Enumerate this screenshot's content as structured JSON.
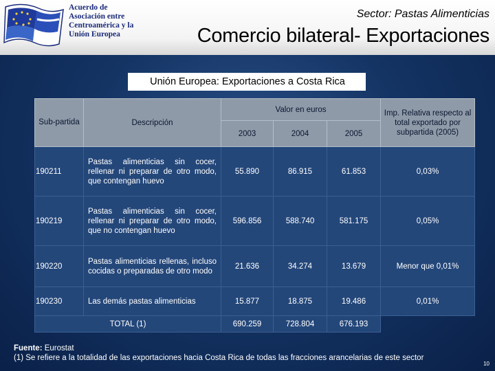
{
  "logo": {
    "lines": [
      "Acuerdo de",
      "Asociación entre",
      "Centroamérica y la",
      "Unión Europea"
    ]
  },
  "header": {
    "sector": "Sector: Pastas Alimenticias",
    "title": "Comercio bilateral- Exportaciones"
  },
  "subtitle": "Unión Europea: Exportaciones a Costa Rica",
  "table": {
    "headers": {
      "subpartida": "Sub-partida",
      "descripcion": "Descripción",
      "valor": "Valor en euros",
      "years": [
        "2003",
        "2004",
        "2005"
      ],
      "imp": "Imp. Relativa respecto al total exportado por subpartida (2005)"
    },
    "rows": [
      {
        "code": "190211",
        "desc": "Pastas alimenticias sin cocer, rellenar ni preparar de otro modo, que contengan huevo",
        "v2003": "55.890",
        "v2004": "86.915",
        "v2005": "61.853",
        "imp": "0,03%"
      },
      {
        "code": "190219",
        "desc": "Pastas alimenticias sin cocer, rellenar ni preparar de otro modo, que no contengan huevo",
        "v2003": "596.856",
        "v2004": "588.740",
        "v2005": "581.175",
        "imp": "0,05%"
      },
      {
        "code": "190220",
        "desc": "Pastas alimenticias rellenas, incluso cocidas o preparadas de otro modo",
        "v2003": "21.636",
        "v2004": "34.274",
        "v2005": "13.679",
        "imp": "Menor que 0,01%"
      },
      {
        "code": "190230",
        "desc": "Las demás pastas alimenticias",
        "v2003": "15.877",
        "v2004": "18.875",
        "v2005": "19.486",
        "imp": "0,01%"
      }
    ],
    "total": {
      "label": "TOTAL (1)",
      "v2003": "690.259",
      "v2004": "728.804",
      "v2005": "676.193"
    }
  },
  "footer": {
    "source_label": "Fuente:",
    "source": "Eurostat",
    "note": "(1) Se refiere a la totalidad de las exportaciones hacia Costa Rica de todas las fracciones arancelarias de este sector"
  },
  "page_number": "10"
}
